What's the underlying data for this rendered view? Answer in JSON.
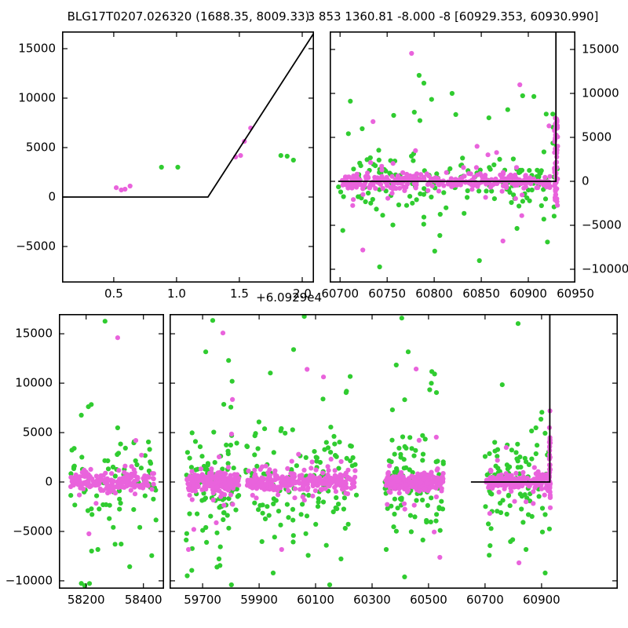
{
  "titles": {
    "left": "BLG17T0207.026320 (1688.35, 8009.33)",
    "right": "3 853 1360.81 -8.000 -8 [60929.353, 60930.990]"
  },
  "x_offset_label": "+6.0929e4",
  "colors": {
    "magenta": "#E963DC",
    "green": "#30CC30",
    "model_line": "#000000",
    "frame": "#000000",
    "background": "#FFFFFF"
  },
  "chart_data": {
    "type": "scatter",
    "description": "Microlensing event light-curve residual viewer; two point series (magenta, green) with a black piecewise-linear model that is flat at 0 and spikes at t=60929.3",
    "clusters_format": "[color, n_points, x_min, x_max, y_dist ('gauss' sigma | 'uniform' ymin ymax), p1, p2]",
    "panels": [
      {
        "id": "top_left",
        "x_offset": 60929,
        "xlim": [
          0.088,
          2.094
        ],
        "ylim": [
          -8650,
          16750
        ],
        "x_ticks": [
          {
            "v": 0.5,
            "label": "0.5"
          },
          {
            "v": 1.0,
            "label": "1.0"
          },
          {
            "v": 1.5,
            "label": "1.5"
          },
          {
            "v": 2.0,
            "label": "2.0"
          }
        ],
        "y_ticks": [
          {
            "v": 15000,
            "label": "15000"
          },
          {
            "v": 10000,
            "label": "10000"
          },
          {
            "v": 5000,
            "label": "5000"
          },
          {
            "v": 0,
            "label": "0"
          },
          {
            "v": -5000,
            "label": "−5000"
          }
        ],
        "y_label_side": "left",
        "model_line": [
          [
            0.088,
            0
          ],
          [
            1.25,
            0
          ],
          [
            2.094,
            16600
          ]
        ],
        "points_magenta": [
          [
            0.52,
            950
          ],
          [
            0.56,
            715
          ],
          [
            0.59,
            795
          ],
          [
            0.63,
            1110
          ],
          [
            1.47,
            4050
          ],
          [
            1.51,
            4200
          ],
          [
            1.54,
            5630
          ],
          [
            1.59,
            6980
          ]
        ],
        "points_green": [
          [
            0.88,
            3015
          ],
          [
            1.01,
            3015
          ],
          [
            1.83,
            4200
          ],
          [
            1.88,
            4130
          ],
          [
            1.93,
            3730
          ]
        ]
      },
      {
        "id": "top_right",
        "xlim": [
          60689,
          60950
        ],
        "ylim": [
          -11520,
          17050
        ],
        "x_ticks": [
          {
            "v": 60700,
            "label": "60700"
          },
          {
            "v": 60750,
            "label": "60750"
          },
          {
            "v": 60800,
            "label": "60800"
          },
          {
            "v": 60850,
            "label": "60850"
          },
          {
            "v": 60900,
            "label": "60900"
          },
          {
            "v": 60950,
            "label": "60950"
          }
        ],
        "y_ticks": [
          {
            "v": 15000,
            "label": "15000"
          },
          {
            "v": 10000,
            "label": "10000"
          },
          {
            "v": 5000,
            "label": "5000"
          },
          {
            "v": 0,
            "label": "0"
          },
          {
            "v": -5000,
            "label": "−5000"
          },
          {
            "v": -10000,
            "label": "−10000"
          }
        ],
        "y_label_side": "right",
        "model_line": [
          [
            60698,
            0
          ],
          [
            60929.3,
            0
          ],
          [
            60929.3,
            17050
          ]
        ],
        "clusters": [
          [
            "green",
            140,
            60698,
            60924,
            "gauss",
            1700
          ],
          [
            "green",
            26,
            60700,
            60928,
            "uniform",
            -9200,
            11500
          ],
          [
            "magenta",
            300,
            60701,
            60924,
            "gauss",
            420
          ],
          [
            "magenta",
            26,
            60705,
            60920,
            "gauss",
            2300
          ],
          [
            "magenta",
            58,
            60927.6,
            60931.2,
            "uniform",
            -3100,
            7400
          ],
          [
            "green",
            10,
            60926,
            60931,
            "uniform",
            -4000,
            5000
          ]
        ],
        "outliers_magenta": [
          [
            60776,
            14550
          ],
          [
            60891,
            10980
          ],
          [
            60735,
            6790
          ],
          [
            60930,
            7100
          ],
          [
            60873,
            -6790
          ],
          [
            60922,
            6300
          ]
        ],
        "outliers_green": [
          [
            60784,
            12050
          ],
          [
            60819,
            10000
          ],
          [
            60894,
            9730
          ],
          [
            60757,
            7500
          ],
          [
            60919,
            7650
          ],
          [
            60926,
            7650
          ],
          [
            60806,
            -6160
          ],
          [
            60848,
            -9020
          ],
          [
            60888,
            -5360
          ],
          [
            60727,
            -2320
          ],
          [
            60914,
            -2770
          ],
          [
            60742,
            -9730
          ],
          [
            60882,
            -2410
          ]
        ]
      },
      {
        "id": "bottom",
        "ylim": [
          -10800,
          17000
        ],
        "y_ticks": [
          {
            "v": 15000,
            "label": "15000"
          },
          {
            "v": 10000,
            "label": "10000"
          },
          {
            "v": 5000,
            "label": "5000"
          },
          {
            "v": 0,
            "label": "0"
          },
          {
            "v": -5000,
            "label": "−5000"
          },
          {
            "v": -10000,
            "label": "−10000"
          }
        ],
        "y_label_side": "left",
        "sub_panels": [
          {
            "xlim": [
              58105,
              58472
            ],
            "x_ticks": [
              {
                "v": 58200,
                "label": "58200"
              },
              {
                "v": 58400,
                "label": "58400"
              }
            ]
          },
          {
            "xlim": [
              59583,
              61170
            ],
            "x_ticks": [
              {
                "v": 59700,
                "label": "59700"
              },
              {
                "v": 59900,
                "label": "59900"
              },
              {
                "v": 60100,
                "label": "60100"
              },
              {
                "v": 60300,
                "label": "60300"
              },
              {
                "v": 60500,
                "label": "60500"
              },
              {
                "v": 60700,
                "label": "60700"
              },
              {
                "v": 60900,
                "label": "60900"
              }
            ],
            "model_line": [
              [
                60650,
                0
              ],
              [
                60929.3,
                0
              ],
              [
                60929.3,
                17000
              ]
            ]
          }
        ],
        "clusters": [
          [
            "green",
            70,
            58140,
            58445,
            "gauss",
            2300
          ],
          [
            "green",
            12,
            58140,
            58445,
            "uniform",
            -10500,
            8000
          ],
          [
            "magenta",
            170,
            58145,
            58440,
            "gauss",
            480
          ],
          [
            "magenta",
            12,
            58150,
            58430,
            "gauss",
            2000
          ],
          [
            "green",
            85,
            59640,
            59830,
            "gauss",
            2600
          ],
          [
            "green",
            14,
            59640,
            59830,
            "uniform",
            -10400,
            13000
          ],
          [
            "magenta",
            200,
            59645,
            59828,
            "gauss",
            500
          ],
          [
            "magenta",
            15,
            59650,
            59820,
            "gauss",
            2200
          ],
          [
            "green",
            110,
            59850,
            60245,
            "gauss",
            2600
          ],
          [
            "green",
            16,
            59850,
            60245,
            "uniform",
            -10400,
            13500
          ],
          [
            "magenta",
            260,
            59855,
            60240,
            "gauss",
            500
          ],
          [
            "magenta",
            18,
            59860,
            60235,
            "gauss",
            2200
          ],
          [
            "green",
            85,
            60345,
            60555,
            "gauss",
            2400
          ],
          [
            "green",
            12,
            60345,
            60555,
            "uniform",
            -9800,
            13000
          ],
          [
            "magenta",
            210,
            60348,
            60552,
            "gauss",
            480
          ],
          [
            "magenta",
            14,
            60350,
            60550,
            "gauss",
            2100
          ],
          [
            "green",
            80,
            60700,
            60925,
            "gauss",
            2400
          ],
          [
            "green",
            12,
            60700,
            60930,
            "uniform",
            -9300,
            8000
          ],
          [
            "magenta",
            150,
            60702,
            60925,
            "gauss",
            450
          ],
          [
            "magenta",
            12,
            60705,
            60925,
            "gauss",
            2000
          ],
          [
            "magenta",
            40,
            60927.5,
            60931,
            "uniform",
            -2500,
            4700
          ]
        ],
        "outliers_green": [
          [
            58266,
            16270
          ],
          [
            58208,
            7620
          ],
          [
            58310,
            5480
          ],
          [
            58241,
            -6830
          ],
          [
            58352,
            -8570
          ],
          [
            58195,
            -10480
          ],
          [
            59736,
            16350
          ],
          [
            59711,
            13175
          ],
          [
            59792,
            12300
          ],
          [
            59775,
            7860
          ],
          [
            59642,
            -5870
          ],
          [
            59758,
            -7780
          ],
          [
            59802,
            -10400
          ],
          [
            60060,
            16750
          ],
          [
            60022,
            13400
          ],
          [
            59940,
            11030
          ],
          [
            60208,
            9050
          ],
          [
            59885,
            4680
          ],
          [
            59950,
            -9200
          ],
          [
            60150,
            -10400
          ],
          [
            59910,
            -6030
          ],
          [
            60190,
            -7780
          ],
          [
            60405,
            16590
          ],
          [
            60428,
            13175
          ],
          [
            60528,
            9050
          ],
          [
            60372,
            7300
          ],
          [
            60480,
            -5870
          ],
          [
            60415,
            -9600
          ],
          [
            60350,
            -6825
          ],
          [
            60817,
            16030
          ],
          [
            60761,
            9840
          ],
          [
            60880,
            5480
          ],
          [
            60845,
            -6825
          ],
          [
            60913,
            -9200
          ],
          [
            60790,
            -6030
          ]
        ],
        "outliers_magenta": [
          [
            58310,
            14600
          ],
          [
            58210,
            -5240
          ],
          [
            59772,
            15080
          ],
          [
            59650,
            -6825
          ],
          [
            60070,
            11400
          ],
          [
            60128,
            10630
          ],
          [
            59980,
            -6825
          ],
          [
            60456,
            11430
          ],
          [
            60540,
            -7620
          ],
          [
            60775,
            3490
          ],
          [
            60820,
            -8175
          ],
          [
            60930,
            7200
          ],
          [
            60928,
            5500
          ],
          [
            60931,
            -2600
          ]
        ]
      }
    ]
  }
}
